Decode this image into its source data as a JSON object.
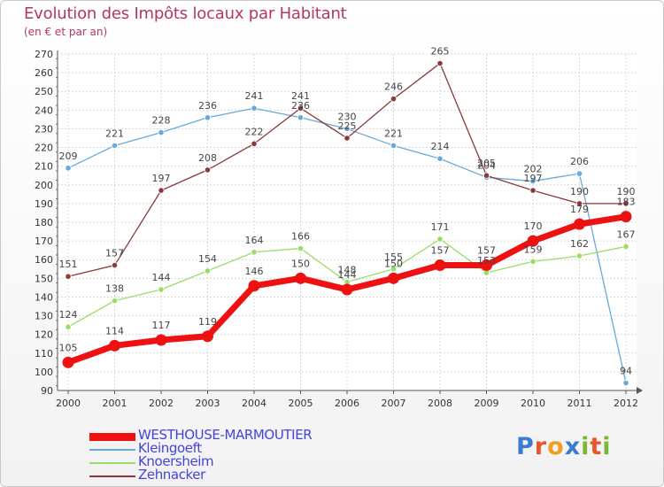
{
  "header": {
    "title": "Evolution des Impôts locaux par Habitant",
    "subtitle": "(en € et par an)"
  },
  "logo": {
    "text": "Proxiti",
    "colors": [
      "#3b7bd4",
      "#e8562e",
      "#f0a020",
      "#3b7bd4",
      "#7ab830",
      "#e8562e",
      "#7ab830"
    ]
  },
  "chart_data": {
    "type": "line",
    "x": [
      "2000",
      "2001",
      "2002",
      "2003",
      "2004",
      "2005",
      "2006",
      "2007",
      "2008",
      "2009",
      "2010",
      "2011",
      "2012"
    ],
    "ylim": [
      90,
      270
    ],
    "yticks": [
      90,
      100,
      110,
      120,
      130,
      140,
      150,
      160,
      170,
      180,
      190,
      200,
      210,
      220,
      230,
      240,
      250,
      260,
      270
    ],
    "grid": true,
    "legend_position": "bottom-left",
    "series": [
      {
        "name": "WESTHOUSE-MARMOUTIER",
        "color": "#ee1111",
        "values": [
          105,
          114,
          117,
          119,
          146,
          150,
          144,
          150,
          157,
          157,
          170,
          179,
          183
        ],
        "labels": [
          "105",
          "114",
          "117",
          "119",
          "146",
          "150",
          "144",
          "150",
          "157",
          "157",
          "170",
          "179",
          "183"
        ]
      },
      {
        "name": "Kleingoeft",
        "color": "#6aa8d8",
        "values": [
          209,
          221,
          228,
          236,
          241,
          236,
          230,
          221,
          214,
          204,
          202,
          206,
          94
        ],
        "labels": [
          "209",
          "221",
          "228",
          "236",
          "241",
          "236",
          "230",
          "221",
          "214",
          "204",
          "202",
          "206",
          "94"
        ]
      },
      {
        "name": "Knoersheim",
        "color": "#99dd66",
        "values": [
          124,
          138,
          144,
          154,
          164,
          166,
          148,
          155,
          171,
          153,
          159,
          162,
          167
        ],
        "labels": [
          "124",
          "138",
          "144",
          "154",
          "164",
          "166",
          "148",
          "155",
          "171",
          "153",
          "159",
          "162",
          "167"
        ]
      },
      {
        "name": "Zehnacker",
        "color": "#8b3a3a",
        "values": [
          151,
          157,
          197,
          208,
          222,
          241,
          225,
          246,
          265,
          205,
          197,
          190,
          190
        ],
        "labels": [
          "151",
          "157",
          "197",
          "208",
          "222",
          "241",
          "225",
          "246",
          "265",
          "205",
          "197",
          "190",
          "190"
        ]
      }
    ]
  }
}
